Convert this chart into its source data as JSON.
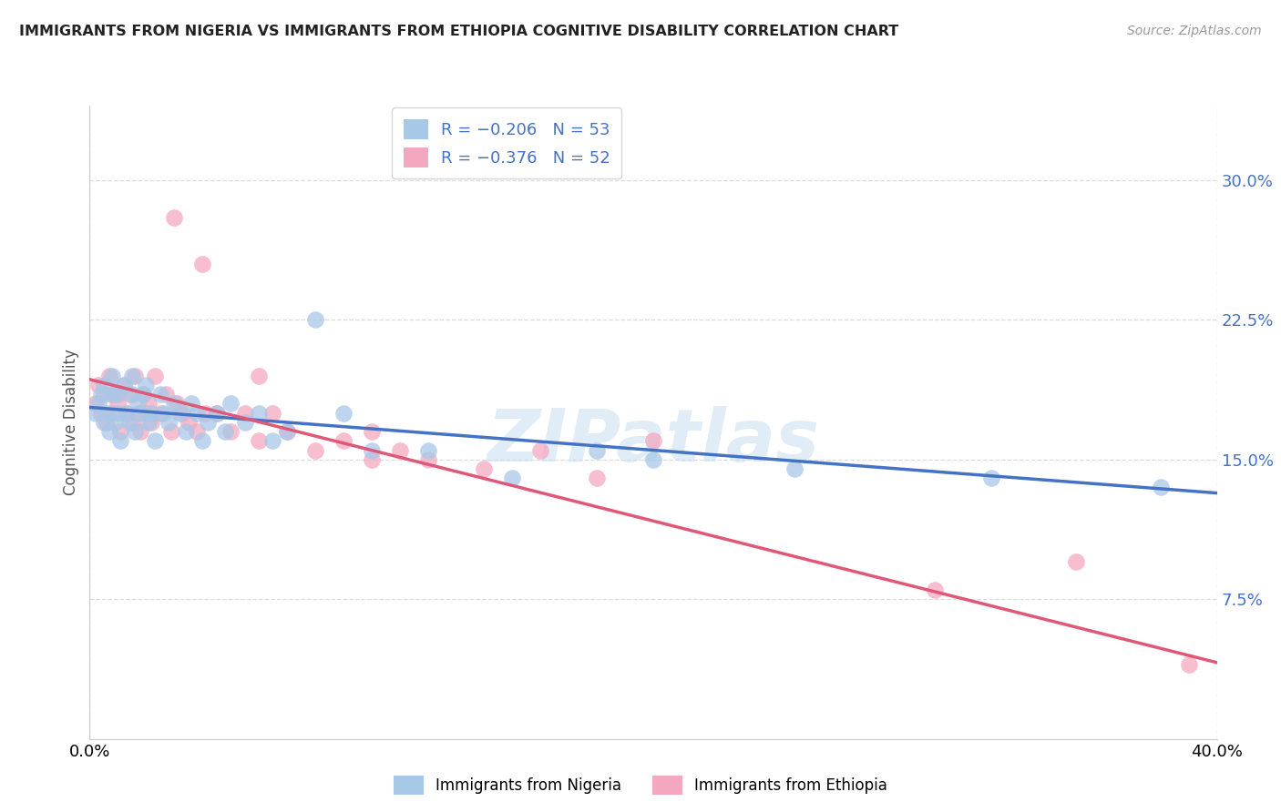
{
  "title": "IMMIGRANTS FROM NIGERIA VS IMMIGRANTS FROM ETHIOPIA COGNITIVE DISABILITY CORRELATION CHART",
  "source": "Source: ZipAtlas.com",
  "ylabel": "Cognitive Disability",
  "y_ticks": [
    0.075,
    0.15,
    0.225,
    0.3
  ],
  "y_tick_labels": [
    "7.5%",
    "15.0%",
    "22.5%",
    "30.0%"
  ],
  "x_lim": [
    0.0,
    0.4
  ],
  "y_lim": [
    0.0,
    0.34
  ],
  "color_nigeria": "#a8c8e8",
  "color_ethiopia": "#f4a8c0",
  "color_nigeria_line": "#4472c4",
  "color_ethiopia_line": "#e05878",
  "color_tick_labels": "#4472c4",
  "watermark": "ZIPatlas",
  "legend_nigeria_r": "-0.206",
  "legend_nigeria_n": "53",
  "legend_ethiopia_r": "-0.376",
  "legend_ethiopia_n": "52",
  "nigeria_x": [
    0.002,
    0.003,
    0.004,
    0.005,
    0.005,
    0.006,
    0.007,
    0.008,
    0.008,
    0.009,
    0.01,
    0.01,
    0.011,
    0.012,
    0.013,
    0.014,
    0.015,
    0.015,
    0.016,
    0.017,
    0.018,
    0.019,
    0.02,
    0.021,
    0.022,
    0.023,
    0.025,
    0.026,
    0.028,
    0.03,
    0.032,
    0.034,
    0.036,
    0.038,
    0.04,
    0.042,
    0.045,
    0.048,
    0.05,
    0.055,
    0.06,
    0.065,
    0.07,
    0.08,
    0.09,
    0.1,
    0.12,
    0.15,
    0.18,
    0.2,
    0.25,
    0.32,
    0.38
  ],
  "nigeria_y": [
    0.175,
    0.18,
    0.185,
    0.17,
    0.19,
    0.175,
    0.165,
    0.185,
    0.195,
    0.17,
    0.175,
    0.185,
    0.16,
    0.19,
    0.175,
    0.17,
    0.185,
    0.195,
    0.165,
    0.18,
    0.175,
    0.185,
    0.19,
    0.17,
    0.175,
    0.16,
    0.185,
    0.175,
    0.17,
    0.18,
    0.175,
    0.165,
    0.18,
    0.175,
    0.16,
    0.17,
    0.175,
    0.165,
    0.18,
    0.17,
    0.175,
    0.16,
    0.165,
    0.225,
    0.175,
    0.155,
    0.155,
    0.14,
    0.155,
    0.15,
    0.145,
    0.14,
    0.135
  ],
  "ethiopia_x": [
    0.002,
    0.003,
    0.004,
    0.005,
    0.006,
    0.007,
    0.008,
    0.009,
    0.01,
    0.011,
    0.012,
    0.013,
    0.014,
    0.015,
    0.016,
    0.017,
    0.018,
    0.019,
    0.02,
    0.021,
    0.022,
    0.023,
    0.025,
    0.027,
    0.029,
    0.031,
    0.033,
    0.035,
    0.038,
    0.041,
    0.045,
    0.05,
    0.055,
    0.06,
    0.065,
    0.07,
    0.08,
    0.09,
    0.1,
    0.11,
    0.12,
    0.14,
    0.16,
    0.18,
    0.2,
    0.03,
    0.04,
    0.06,
    0.1,
    0.3,
    0.35,
    0.39
  ],
  "ethiopia_y": [
    0.18,
    0.19,
    0.175,
    0.185,
    0.17,
    0.195,
    0.175,
    0.185,
    0.18,
    0.165,
    0.19,
    0.175,
    0.185,
    0.17,
    0.195,
    0.175,
    0.165,
    0.185,
    0.175,
    0.18,
    0.17,
    0.195,
    0.175,
    0.185,
    0.165,
    0.18,
    0.175,
    0.17,
    0.165,
    0.175,
    0.175,
    0.165,
    0.175,
    0.16,
    0.175,
    0.165,
    0.155,
    0.16,
    0.165,
    0.155,
    0.15,
    0.145,
    0.155,
    0.14,
    0.16,
    0.28,
    0.255,
    0.195,
    0.15,
    0.08,
    0.095,
    0.04
  ],
  "nigeria_intercept": 0.178,
  "nigeria_slope": -0.115,
  "ethiopia_intercept": 0.193,
  "ethiopia_slope": -0.38
}
